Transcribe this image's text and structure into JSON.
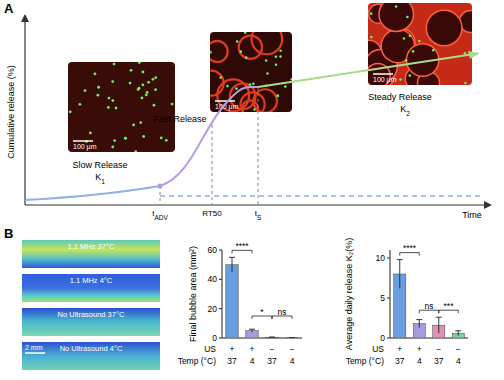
{
  "panel_labels": [
    "A",
    "B"
  ],
  "diagram": {
    "y_axis_label": "Cumulative release (%)",
    "x_axis_label": "Time",
    "phases": [
      {
        "label": "Slow Release",
        "rate": {
          "text": "K",
          "sub": "1"
        }
      },
      {
        "label": "Fast Release"
      },
      {
        "label": "Steady Release",
        "rate": {
          "text": "K",
          "sub": "2"
        }
      }
    ],
    "time_marks": [
      {
        "text": "t",
        "sub": "ADV"
      },
      {
        "text": "RT50"
      },
      {
        "text": "t",
        "sub": "S"
      }
    ],
    "images": [
      {
        "scale_bar": "100 µm"
      },
      {
        "scale_bar": "100 µm"
      },
      {
        "scale_bar": "100 µm"
      }
    ]
  },
  "ultrasound_images": [
    {
      "label": "1.1 MHz 37°C"
    },
    {
      "label": "1.1 MHz 4°C"
    },
    {
      "label": "No Ultrasound 37°C"
    },
    {
      "label": "No Ultrasound 4°C",
      "scale_bar": "2 mm"
    }
  ],
  "chart_data": [
    {
      "type": "bar",
      "y_label": "Final bubble area (mm²)",
      "categories": [
        null,
        null,
        null,
        null
      ],
      "values": [
        50,
        5,
        0.4,
        0.1
      ],
      "errors": [
        5,
        1,
        0.3,
        0.1
      ],
      "colors": [
        "#6a9ee0",
        "#a99ae0",
        "#e48db8",
        "#7fd0a0"
      ],
      "ylim": [
        0,
        60
      ],
      "yticks": [
        0,
        20,
        40,
        60
      ],
      "x_rows": [
        {
          "label": "US",
          "values": [
            "+",
            "+",
            "−",
            "−"
          ]
        },
        {
          "label": "Temp (°C)",
          "values": [
            37,
            4,
            37,
            4
          ]
        }
      ],
      "significance": [
        {
          "from": 0,
          "to": 1,
          "label": "****"
        },
        {
          "from": 1,
          "to": 2,
          "label": "*"
        },
        {
          "from": 2,
          "to": 3,
          "label": "ns"
        }
      ]
    },
    {
      "type": "bar",
      "y_label": "Average daily release K₂(%)",
      "categories": [
        null,
        null,
        null,
        null
      ],
      "values": [
        8,
        1.8,
        1.6,
        0.6
      ],
      "errors": [
        1.8,
        0.5,
        1,
        0.3
      ],
      "colors": [
        "#6a9ee0",
        "#a99ae0",
        "#e48db8",
        "#7fd0a0"
      ],
      "ylim": [
        0,
        11
      ],
      "yticks": [
        0,
        5,
        10
      ],
      "x_rows": [
        {
          "label": "US",
          "values": [
            "+",
            "+",
            "−",
            "−"
          ]
        },
        {
          "label": "Temp (°C)",
          "values": [
            37,
            4,
            37,
            4
          ]
        }
      ],
      "significance": [
        {
          "from": 0,
          "to": 1,
          "label": "****"
        },
        {
          "from": 1,
          "to": 2,
          "label": "ns"
        },
        {
          "from": 2,
          "to": 3,
          "label": "***"
        }
      ]
    }
  ]
}
